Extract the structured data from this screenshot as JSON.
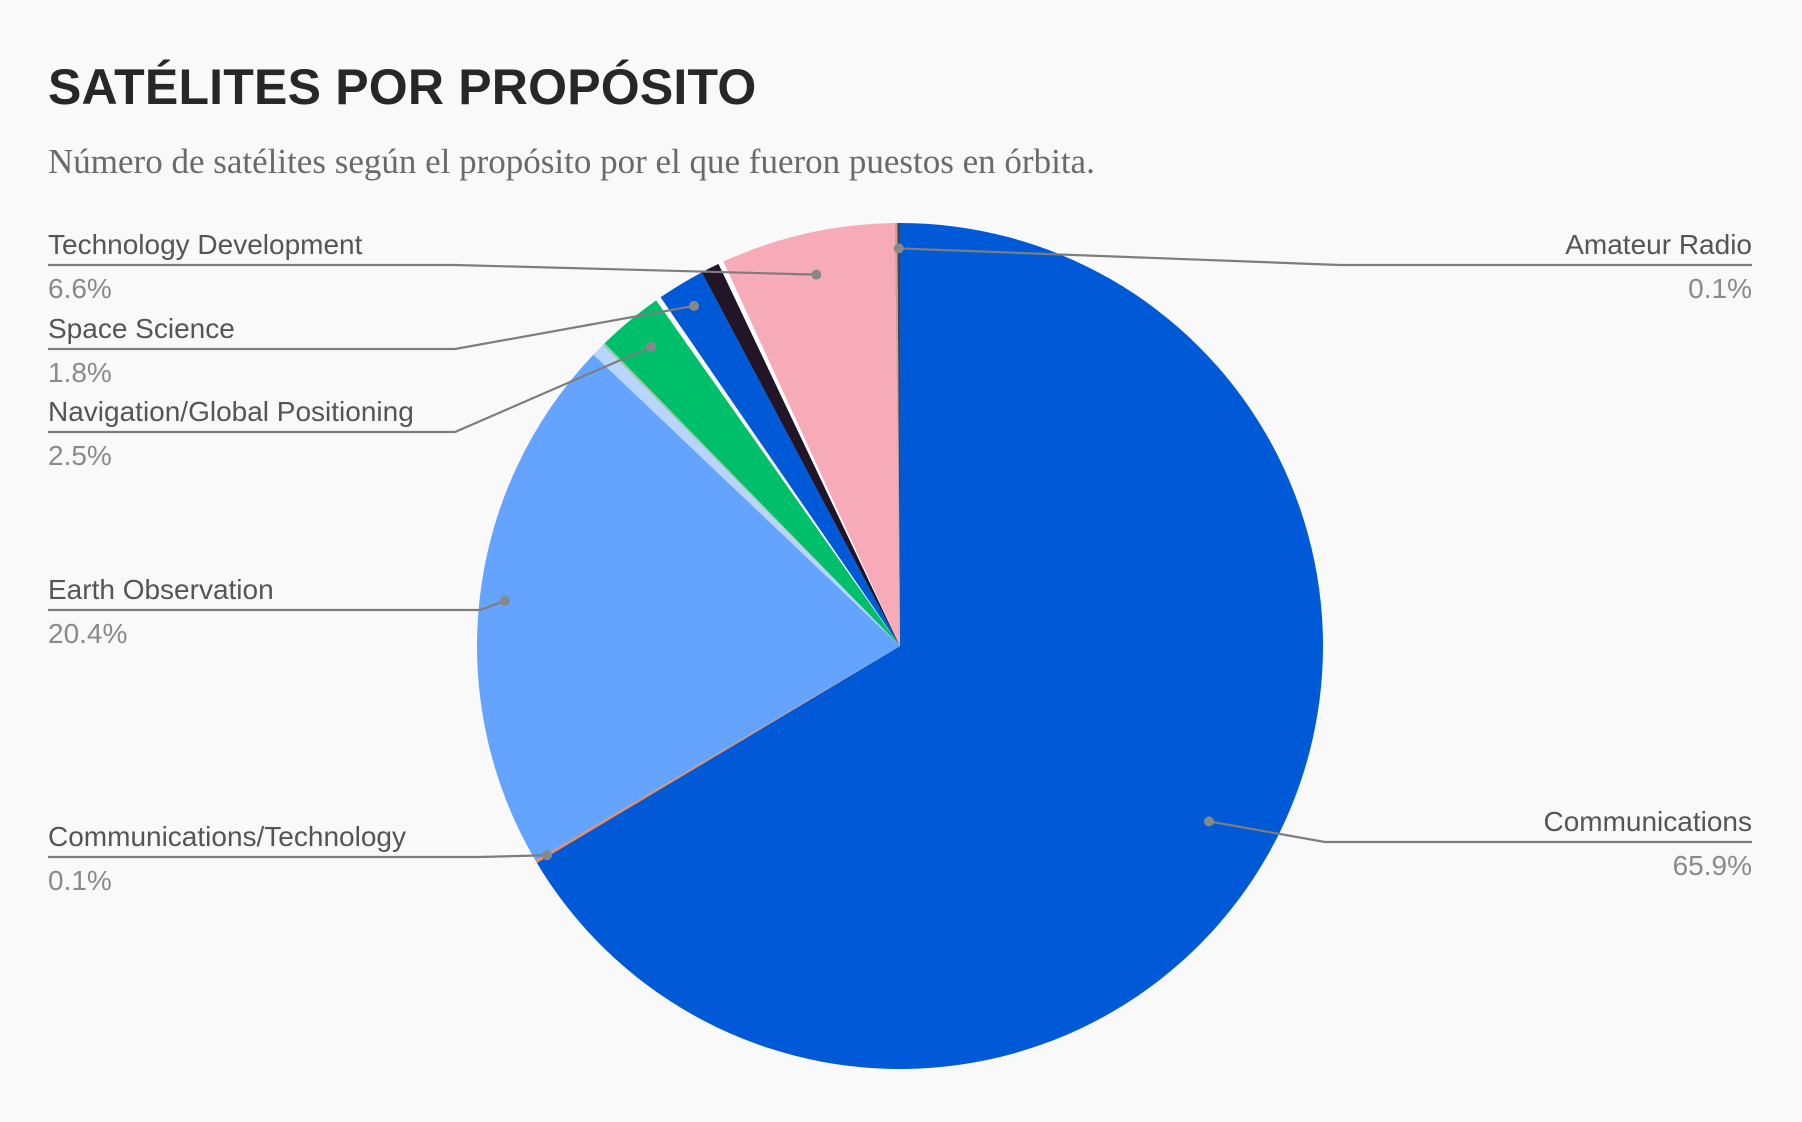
{
  "chart_data": {
    "type": "pie",
    "title": "SATÉLITES POR PROPÓSITO",
    "subtitle": "Número de satélites según el propósito por el que fueron puestos en órbita.",
    "start_angle_deg": 0,
    "direction": "clockwise",
    "legend": "labels beside slices",
    "slices": [
      {
        "name": "Communications",
        "value": 65.9,
        "label": "65.9%",
        "color": "#0059d6",
        "labeled": true
      },
      {
        "name": "Communications/Technology",
        "value": 0.1,
        "label": "0.1%",
        "color": "#f28b50",
        "labeled": true
      },
      {
        "name": "Earth Observation",
        "value": 20.4,
        "label": "20.4%",
        "color": "#64a4ff",
        "labeled": true
      },
      {
        "name": "",
        "value": 0.5,
        "label": "",
        "color": "#b7d5ff",
        "labeled": false
      },
      {
        "name": "",
        "value": 0.1,
        "label": "",
        "color": "#9ec9a8",
        "labeled": false
      },
      {
        "name": "Navigation/Global Positioning",
        "value": 2.5,
        "label": "2.5%",
        "color": "#00bf6a",
        "labeled": true
      },
      {
        "name": "",
        "value": 0.2,
        "label": "",
        "color": "#ffffff",
        "labeled": false
      },
      {
        "name": "Space Science",
        "value": 1.8,
        "label": "1.8%",
        "color": "#0059d6",
        "labeled": true
      },
      {
        "name": "",
        "value": 0.7,
        "label": "",
        "color": "#221528",
        "labeled": false
      },
      {
        "name": "",
        "value": 0.2,
        "label": "",
        "color": "#ffffff",
        "labeled": false
      },
      {
        "name": "Technology Development",
        "value": 6.6,
        "label": "6.6%",
        "color": "#f7aab7",
        "labeled": true
      },
      {
        "name": "",
        "value": 0.1,
        "label": "",
        "color": "#c9a0a8",
        "labeled": false
      },
      {
        "name": "Amateur Radio",
        "value": 0.1,
        "label": "0.1%",
        "color": "#4f4236",
        "labeled": true
      }
    ]
  }
}
